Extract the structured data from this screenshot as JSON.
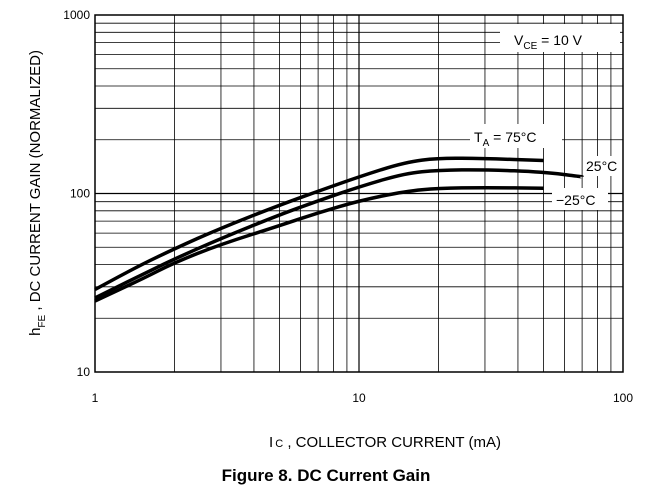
{
  "figure": {
    "caption": "Figure 8. DC Current Gain"
  },
  "chart_data": {
    "type": "line",
    "title": "",
    "xscale": "log",
    "yscale": "log",
    "xlim": [
      1,
      100
    ],
    "ylim": [
      10,
      1000
    ],
    "grid": true,
    "x_ticks": [
      "1",
      "10",
      "100"
    ],
    "y_ticks": [
      "10",
      "100",
      "1000"
    ],
    "xlabel": {
      "main": "I",
      "sub": "C",
      "rest": " , COLLECTOR CURRENT (mA)"
    },
    "ylabel": {
      "main": "h",
      "sub": "FE",
      "rest": " , DC CURRENT GAIN (NORMALIZED)"
    },
    "condition": {
      "main": "V",
      "sub": "CE",
      "rest": " = 10 V"
    },
    "series_labels": {
      "t75": {
        "main": "T",
        "sub": "A",
        "rest": " = 75°C"
      },
      "t25": "25°C",
      "tm25": "−25°C"
    },
    "series": [
      {
        "name": "T_A = 75°C",
        "x": [
          1,
          1.5,
          2,
          3,
          5,
          7,
          10,
          15,
          20,
          30,
          50
        ],
        "y": [
          29,
          40,
          49,
          64,
          86,
          103,
          124,
          150,
          158,
          157,
          153
        ]
      },
      {
        "name": "25°C",
        "x": [
          1,
          1.5,
          2,
          3,
          5,
          7,
          10,
          15,
          20,
          30,
          50,
          70
        ],
        "y": [
          26,
          35,
          43,
          56,
          76,
          91,
          109,
          130,
          135,
          136,
          132,
          124
        ]
      },
      {
        "name": "−25°C",
        "x": [
          1,
          1.5,
          2,
          3,
          5,
          7,
          10,
          15,
          20,
          30,
          50
        ],
        "y": [
          25,
          33,
          41,
          52,
          66,
          78,
          91,
          103,
          107,
          108,
          107
        ]
      }
    ]
  }
}
